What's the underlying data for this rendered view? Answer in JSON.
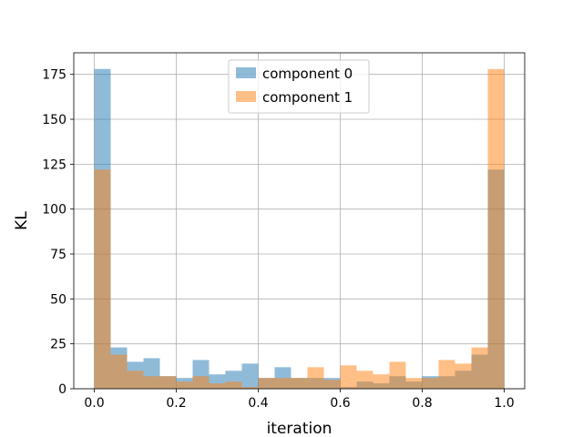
{
  "chart_data": {
    "type": "bar",
    "xlabel": "iteration",
    "ylabel": "KL",
    "xlim": [
      -0.05,
      1.05
    ],
    "ylim": [
      0,
      187
    ],
    "xticks": [
      0.0,
      0.2,
      0.4,
      0.6,
      0.8,
      1.0
    ],
    "xtick_labels": [
      "0.0",
      "0.2",
      "0.4",
      "0.6",
      "0.8",
      "1.0"
    ],
    "yticks": [
      0,
      25,
      50,
      75,
      100,
      125,
      150,
      175
    ],
    "ytick_labels": [
      "0",
      "25",
      "50",
      "75",
      "100",
      "125",
      "150",
      "175"
    ],
    "grid": true,
    "legend_position": "top-center",
    "bin_edges": [
      0.0,
      0.04,
      0.08,
      0.12,
      0.16,
      0.2,
      0.24,
      0.28,
      0.32,
      0.36,
      0.4,
      0.44,
      0.48,
      0.52,
      0.56,
      0.6,
      0.64,
      0.68,
      0.72,
      0.76,
      0.8,
      0.84,
      0.88,
      0.92,
      0.96,
      1.0
    ],
    "series": [
      {
        "name": "component 0",
        "color": "#1f77b4",
        "values": [
          178,
          23,
          15,
          17,
          7,
          6,
          16,
          8,
          10,
          14,
          6,
          12,
          6,
          6,
          6,
          1,
          4,
          3,
          7,
          4,
          7,
          7,
          10,
          19,
          122
        ]
      },
      {
        "name": "component 1",
        "color": "#ff7f0e",
        "values": [
          122,
          19,
          10,
          7,
          7,
          4,
          7,
          3,
          4,
          1,
          6,
          6,
          6,
          12,
          5,
          13,
          10,
          8,
          15,
          6,
          6,
          16,
          14,
          23,
          178
        ]
      }
    ],
    "bar_opacity": 0.5
  }
}
